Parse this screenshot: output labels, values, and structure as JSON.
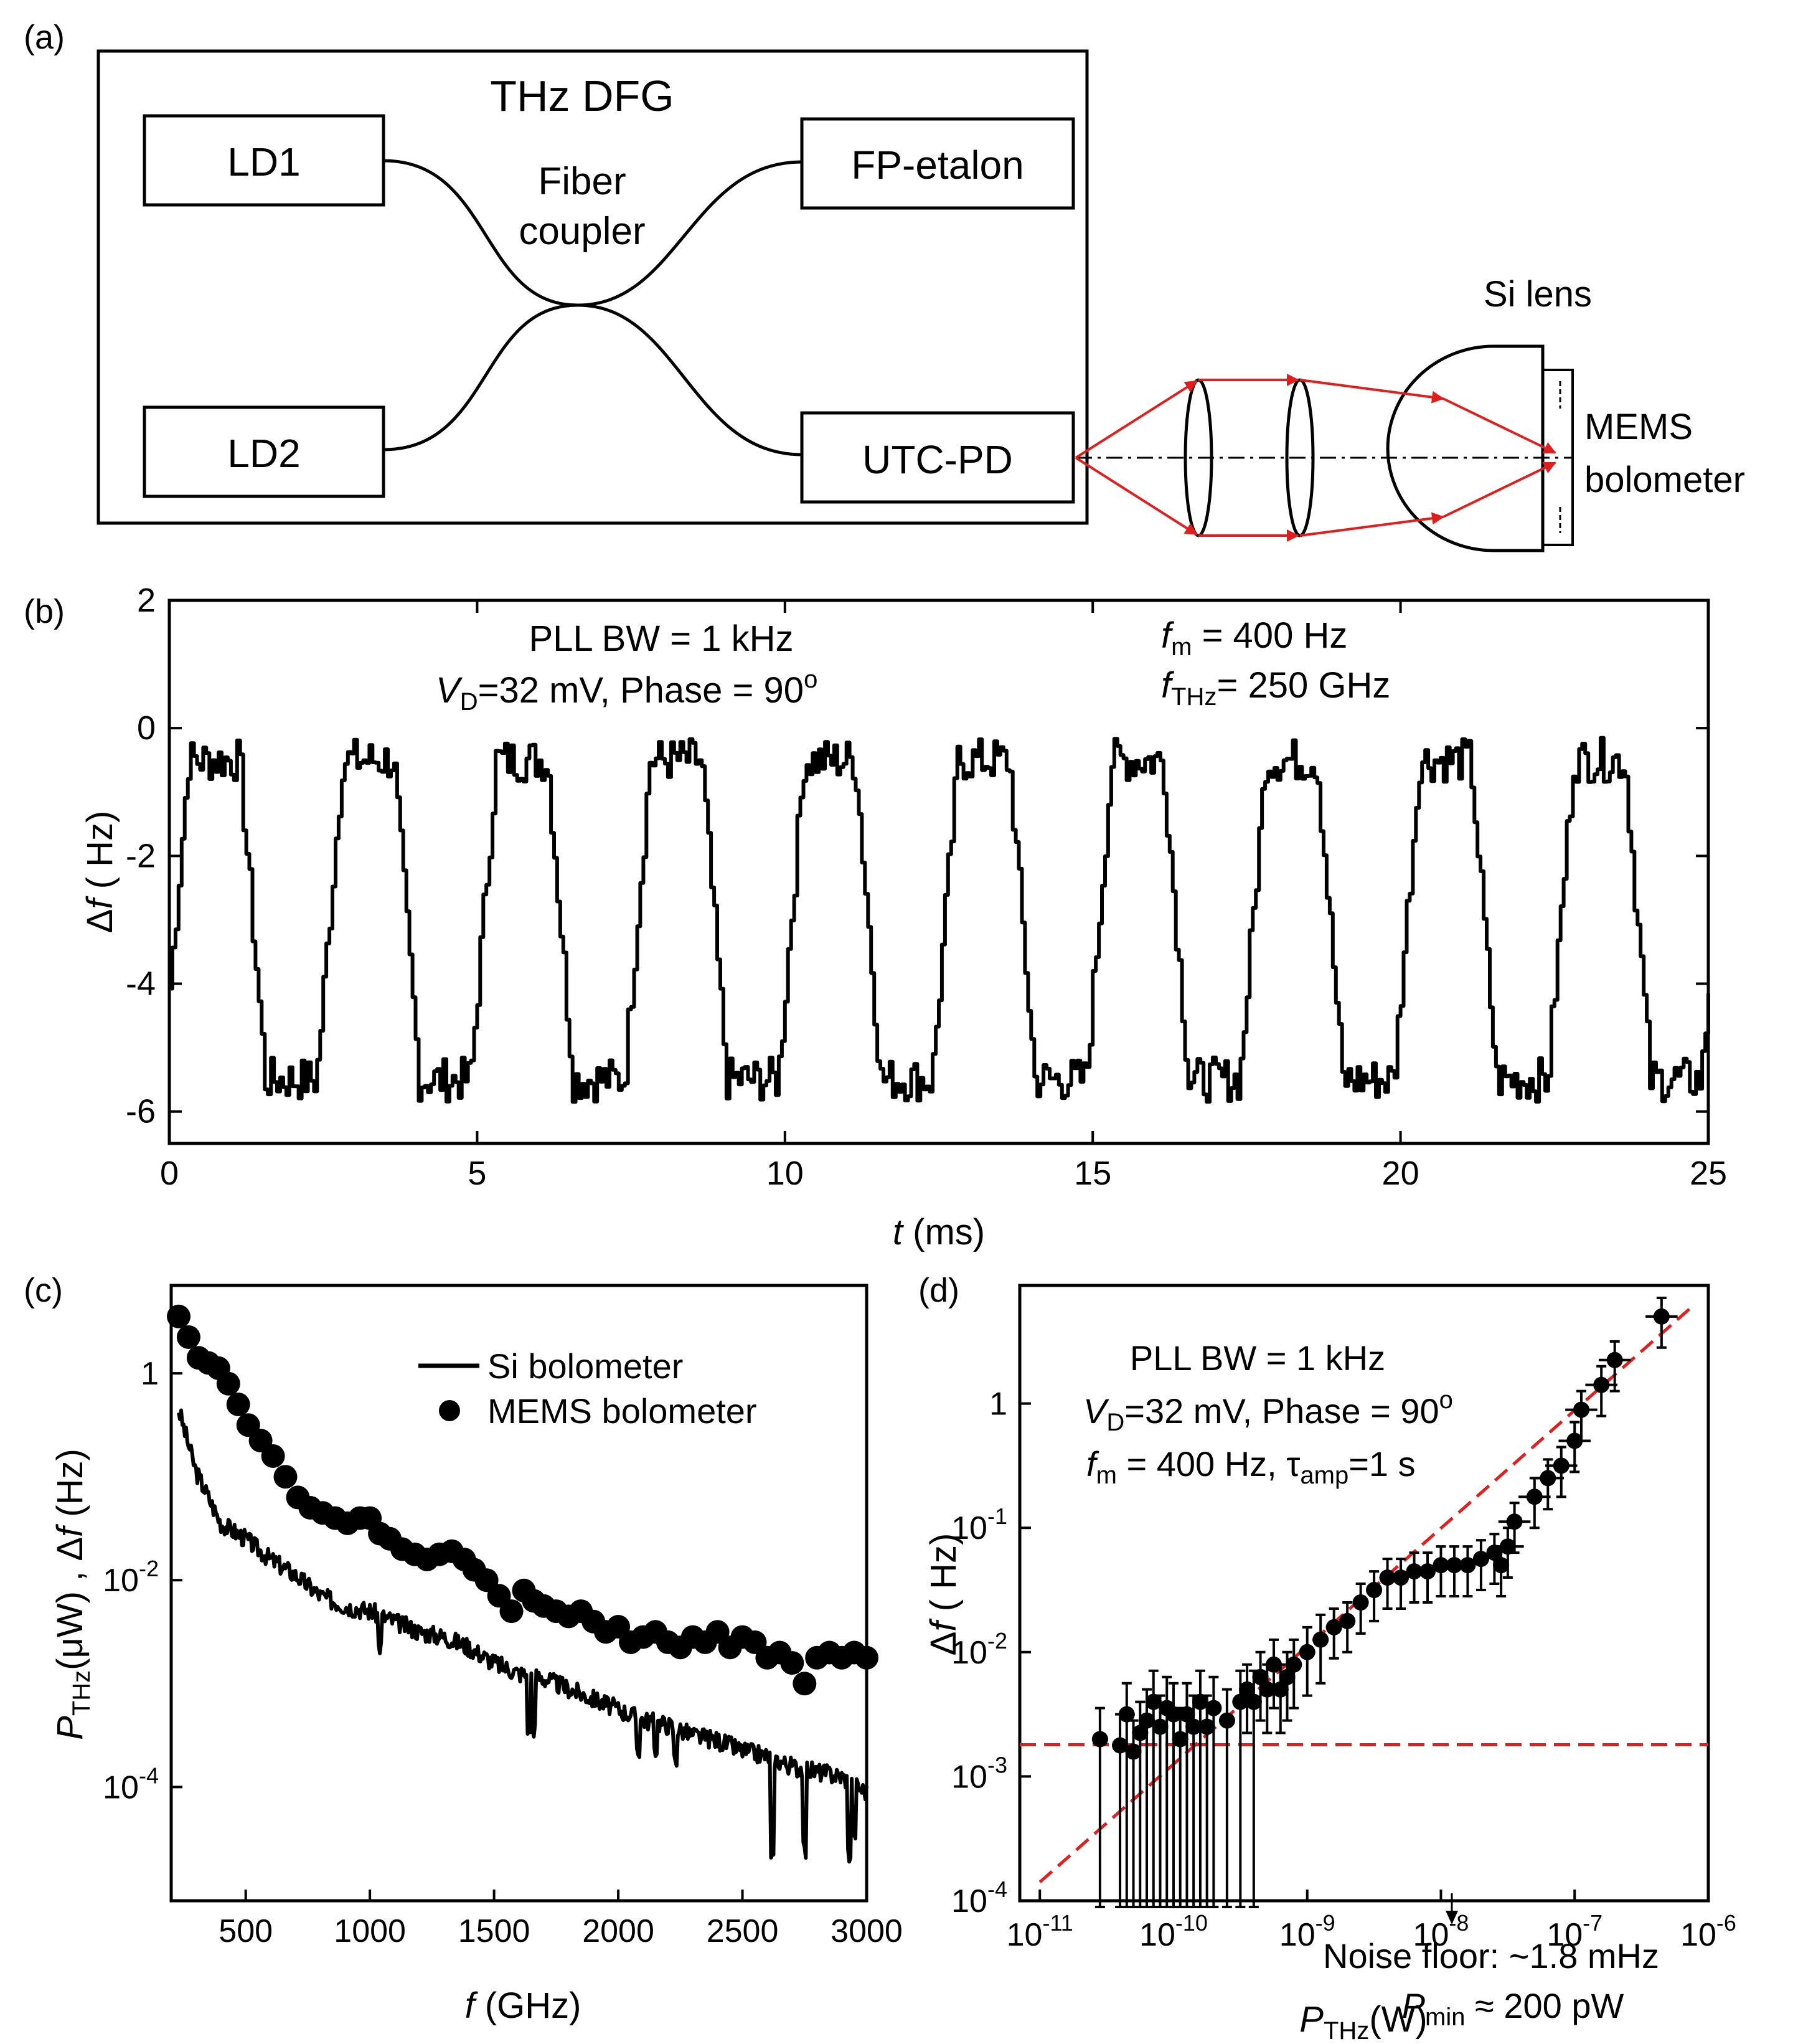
{
  "colors": {
    "ink": "#000000",
    "beam": "#e01e1e",
    "fit": "#e02020"
  },
  "panel_a": {
    "label": "(a)",
    "title": "THz DFG",
    "ld1": "LD1",
    "ld2": "LD2",
    "coupler_line1": "Fiber",
    "coupler_line2": "coupler",
    "etalon": "FP-etalon",
    "utcpd": "UTC-PD",
    "si_lens": "Si lens",
    "mems_line1": "MEMS",
    "mems_line2": "bolometer"
  },
  "panel_b": {
    "label": "(b)",
    "ann_line1": "PLL BW = 1 kHz",
    "ann_vd_v": "V",
    "ann_vd_sub": "D",
    "ann_vd_rest": "=32 mV, Phase = 90",
    "ann_deg": "o",
    "ann_fm_f": "f",
    "ann_fm_sub": "m",
    "ann_fm_rest": " = 400 Hz",
    "ann_fthz_f": "f",
    "ann_fthz_sub": "THz",
    "ann_fthz_rest": "= 250 GHz",
    "ylabel_delta": "Δ",
    "ylabel_f": "f",
    "ylabel_rest": " ( Hz)",
    "xlabel_t": "t",
    "xlabel_rest": " (ms)"
  },
  "panel_c": {
    "label": "(c)",
    "legend_line": "Si bolometer",
    "legend_dots": "MEMS bolometer",
    "ylabel_p": "P",
    "ylabel_sub": "THz",
    "ylabel_mid": "(μW) , Δ",
    "ylabel_f": "f",
    "ylabel_end": " (Hz)",
    "xlabel_f": "f",
    "xlabel_rest": " (GHz)"
  },
  "panel_d": {
    "label": "(d)",
    "ann_line1": "PLL BW = 1 kHz",
    "ann_vd_v": "V",
    "ann_vd_sub": "D",
    "ann_vd_rest": "=32 mV, Phase = 90",
    "ann_deg": "o",
    "ann_fm_f": "f",
    "ann_fm_sub": "m",
    "ann_fm_rest": " = 400 Hz, τ",
    "ann_tau_sub": "amp",
    "ann_tau_rest": "=1 s",
    "noise_text": "Noise floor: ~1.8 mHz",
    "pmin_p": "P",
    "pmin_sub": "min",
    "pmin_rest": " ≈ 200 pW",
    "ylabel_delta": "Δ",
    "ylabel_f": "f",
    "ylabel_rest": " ( Hz)",
    "xlabel_p": "P",
    "xlabel_sub": "THz",
    "xlabel_rest": "(W)"
  },
  "chart_data": [
    {
      "id": "b",
      "type": "line",
      "title": "",
      "xlabel": "t (ms)",
      "ylabel": "Δf ( Hz)",
      "xlim": [
        0,
        25
      ],
      "ylim": [
        -6.5,
        2
      ],
      "xticks": [
        0,
        5,
        10,
        15,
        20,
        25
      ],
      "xtick_labels": [
        "0",
        "5",
        "10",
        "15",
        "20",
        "25"
      ],
      "yticks": [
        2,
        0,
        -2,
        -4,
        -6
      ],
      "ytick_labels": [
        "2",
        "0",
        "-2",
        "-4",
        "-6"
      ],
      "series": [
        {
          "name": "Δf",
          "period_ms": 2.5,
          "high_hz": -0.5,
          "low_hz": -5.5,
          "noise_hz": 0.35
        }
      ]
    },
    {
      "id": "c",
      "type": "line",
      "title": "",
      "xlabel": "f (GHz)",
      "ylabel": "P_THz(μW) , Δf (Hz)",
      "xlim": [
        200,
        3000
      ],
      "ylog": true,
      "ylim_exp": [
        -5.1,
        0.85
      ],
      "xticks": [
        500,
        1000,
        1500,
        2000,
        2500,
        3000
      ],
      "xtick_labels": [
        "500",
        "1000",
        "1500",
        "2000",
        "2500",
        "3000"
      ],
      "yticks_exp": [
        0,
        -2,
        -4
      ],
      "ytick_bases": [
        "1",
        "10",
        "10"
      ],
      "ytick_sups": [
        "",
        "-2",
        "-4"
      ],
      "series": [
        {
          "name": "Si bolometer",
          "style": "line",
          "x": [
            230,
            300,
            400,
            500,
            600,
            700,
            800,
            900,
            1000,
            1100,
            1200,
            1300,
            1400,
            1500,
            1600,
            1700,
            1800,
            1900,
            2000,
            2100,
            2200,
            2300,
            2400,
            2500,
            2600,
            2700,
            2800,
            2900,
            3000
          ],
          "log10y": [
            -0.35,
            -0.95,
            -1.45,
            -1.6,
            -1.8,
            -1.95,
            -2.15,
            -2.25,
            -2.3,
            -2.4,
            -2.5,
            -2.55,
            -2.65,
            -2.8,
            -2.9,
            -2.95,
            -3.05,
            -3.15,
            -3.25,
            -3.35,
            -3.4,
            -3.5,
            -3.55,
            -3.65,
            -3.7,
            -3.8,
            -3.85,
            -3.9,
            -4.05
          ]
        },
        {
          "name": "MEMS bolometer",
          "style": "markers",
          "x": [
            230,
            270,
            310,
            350,
            390,
            430,
            470,
            510,
            560,
            610,
            660,
            710,
            760,
            810,
            860,
            910,
            960,
            1000,
            1040,
            1080,
            1130,
            1180,
            1230,
            1280,
            1330,
            1380,
            1420,
            1470,
            1520,
            1570,
            1620,
            1660,
            1700,
            1750,
            1800,
            1850,
            1900,
            1950,
            2000,
            2050,
            2100,
            2150,
            2200,
            2250,
            2300,
            2350,
            2400,
            2450,
            2500,
            2550,
            2600,
            2650,
            2700,
            2750,
            2800,
            2850,
            2900,
            2950,
            3000
          ],
          "log10y": [
            0.55,
            0.35,
            0.15,
            0.1,
            0.05,
            -0.1,
            -0.3,
            -0.5,
            -0.65,
            -0.8,
            -1.0,
            -1.2,
            -1.3,
            -1.35,
            -1.4,
            -1.45,
            -1.4,
            -1.4,
            -1.55,
            -1.6,
            -1.7,
            -1.75,
            -1.8,
            -1.75,
            -1.72,
            -1.8,
            -1.9,
            -2.0,
            -2.15,
            -2.3,
            -2.1,
            -2.2,
            -2.25,
            -2.3,
            -2.35,
            -2.3,
            -2.4,
            -2.5,
            -2.45,
            -2.6,
            -2.55,
            -2.5,
            -2.6,
            -2.65,
            -2.55,
            -2.6,
            -2.5,
            -2.65,
            -2.55,
            -2.6,
            -2.75,
            -2.7,
            -2.8,
            -3.0,
            -2.75,
            -2.7,
            -2.75,
            -2.7,
            -2.75
          ]
        }
      ]
    },
    {
      "id": "d",
      "type": "scatter",
      "title": "",
      "xlabel": "P_THz(W)",
      "ylabel": "Δf ( Hz)",
      "xlog": true,
      "ylog": true,
      "xlim_exp": [
        -11.15,
        -6
      ],
      "ylim_exp": [
        -4,
        0.95
      ],
      "xticks_exp": [
        -11,
        -10,
        -9,
        -8,
        -7,
        -6
      ],
      "xtick_sups": [
        "-11",
        "-10",
        "-9",
        "-8",
        "-7",
        "-6"
      ],
      "yticks_exp": [
        0,
        -1,
        -2,
        -3,
        -4
      ],
      "ytick_bases": [
        "1",
        "10",
        "10",
        "10",
        "10"
      ],
      "ytick_sups": [
        "",
        "-1",
        "-2",
        "-3",
        "-4"
      ],
      "noise_floor_hz": 0.0018,
      "fit_line": {
        "x_exp": [
          -11,
          -6.1
        ],
        "y_exp": [
          -3.85,
          0.8
        ]
      },
      "series": [
        {
          "name": "measurement",
          "log10x": [
            -10.55,
            -10.4,
            -10.35,
            -10.3,
            -10.25,
            -10.2,
            -10.15,
            -10.1,
            -10.05,
            -10.0,
            -9.95,
            -9.9,
            -9.85,
            -9.8,
            -9.75,
            -9.7,
            -9.6,
            -9.5,
            -9.45,
            -9.4,
            -9.35,
            -9.3,
            -9.25,
            -9.2,
            -9.15,
            -9.1,
            -9.0,
            -8.9,
            -8.8,
            -8.7,
            -8.6,
            -8.5,
            -8.4,
            -8.3,
            -8.2,
            -8.1,
            -8.0,
            -7.9,
            -7.8,
            -7.7,
            -7.6,
            -7.55,
            -7.5,
            -7.45,
            -7.3,
            -7.2,
            -7.1,
            -7.0,
            -6.95,
            -6.8,
            -6.7,
            -6.35
          ],
          "log10y": [
            -2.7,
            -2.75,
            -2.5,
            -2.8,
            -2.65,
            -2.55,
            -2.4,
            -2.6,
            -2.45,
            -2.5,
            -2.7,
            -2.5,
            -2.6,
            -2.4,
            -2.6,
            -2.45,
            -2.55,
            -2.4,
            -2.3,
            -2.4,
            -2.2,
            -2.3,
            -2.1,
            -2.3,
            -2.2,
            -2.1,
            -2.0,
            -1.9,
            -1.8,
            -1.75,
            -1.6,
            -1.5,
            -1.4,
            -1.4,
            -1.35,
            -1.35,
            -1.3,
            -1.3,
            -1.3,
            -1.25,
            -1.2,
            -1.3,
            -1.15,
            -0.95,
            -0.75,
            -0.6,
            -0.5,
            -0.3,
            -0.05,
            0.15,
            0.35,
            0.7
          ]
        }
      ]
    }
  ]
}
